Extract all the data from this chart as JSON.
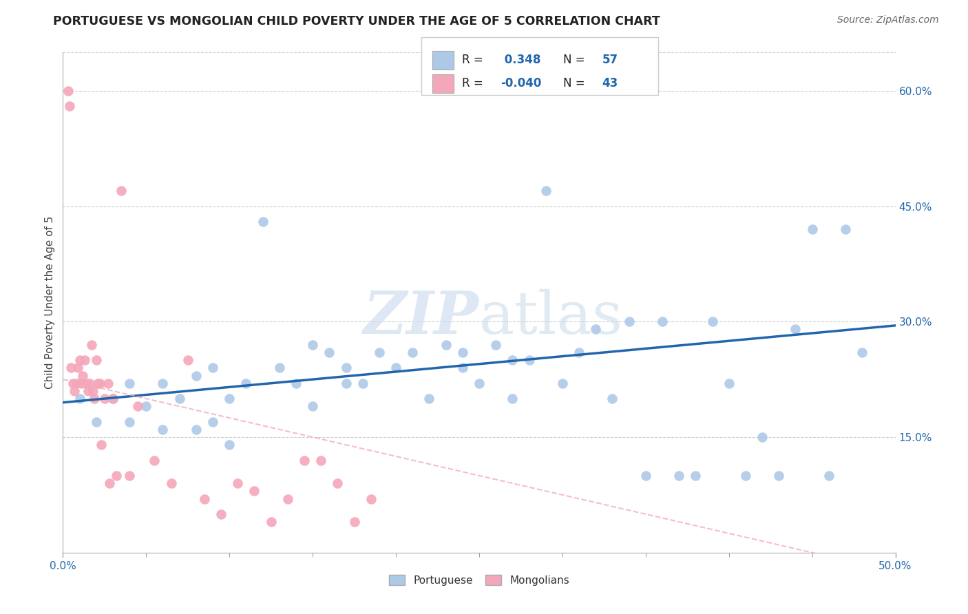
{
  "title": "PORTUGUESE VS MONGOLIAN CHILD POVERTY UNDER THE AGE OF 5 CORRELATION CHART",
  "source": "Source: ZipAtlas.com",
  "ylabel": "Child Poverty Under the Age of 5",
  "ytick_labels": [
    "15.0%",
    "30.0%",
    "45.0%",
    "60.0%"
  ],
  "ytick_values": [
    0.15,
    0.3,
    0.45,
    0.6
  ],
  "xmin": 0.0,
  "xmax": 0.5,
  "ymin": 0.0,
  "ymax": 0.65,
  "legend_label1": "Portuguese",
  "legend_label2": "Mongolians",
  "legend_R1": " 0.348",
  "legend_N1": "57",
  "legend_R2": "-0.040",
  "legend_N2": "43",
  "color_blue": "#aec9e8",
  "color_pink": "#f4a6bb",
  "color_blue_trend": "#2166ac",
  "color_pink_trend": "#f4a6bb",
  "watermark": "ZIPatlas",
  "portuguese_x": [
    0.01,
    0.02,
    0.03,
    0.04,
    0.04,
    0.05,
    0.06,
    0.06,
    0.07,
    0.08,
    0.08,
    0.09,
    0.09,
    0.1,
    0.1,
    0.11,
    0.12,
    0.13,
    0.14,
    0.15,
    0.15,
    0.16,
    0.17,
    0.17,
    0.18,
    0.19,
    0.2,
    0.21,
    0.22,
    0.23,
    0.24,
    0.24,
    0.25,
    0.26,
    0.27,
    0.27,
    0.28,
    0.29,
    0.3,
    0.31,
    0.32,
    0.33,
    0.34,
    0.35,
    0.36,
    0.37,
    0.38,
    0.39,
    0.4,
    0.41,
    0.42,
    0.43,
    0.44,
    0.45,
    0.46,
    0.47,
    0.48
  ],
  "portuguese_y": [
    0.2,
    0.17,
    0.2,
    0.17,
    0.22,
    0.19,
    0.22,
    0.16,
    0.2,
    0.23,
    0.16,
    0.17,
    0.24,
    0.2,
    0.14,
    0.22,
    0.43,
    0.24,
    0.22,
    0.27,
    0.19,
    0.26,
    0.22,
    0.24,
    0.22,
    0.26,
    0.24,
    0.26,
    0.2,
    0.27,
    0.24,
    0.26,
    0.22,
    0.27,
    0.25,
    0.2,
    0.25,
    0.47,
    0.22,
    0.26,
    0.29,
    0.2,
    0.3,
    0.1,
    0.3,
    0.1,
    0.1,
    0.3,
    0.22,
    0.1,
    0.15,
    0.1,
    0.29,
    0.42,
    0.1,
    0.42,
    0.26
  ],
  "mongolian_x": [
    0.003,
    0.004,
    0.005,
    0.006,
    0.007,
    0.008,
    0.009,
    0.01,
    0.011,
    0.012,
    0.013,
    0.014,
    0.015,
    0.016,
    0.017,
    0.018,
    0.019,
    0.02,
    0.021,
    0.022,
    0.023,
    0.025,
    0.027,
    0.028,
    0.03,
    0.032,
    0.035,
    0.04,
    0.045,
    0.055,
    0.065,
    0.075,
    0.085,
    0.095,
    0.105,
    0.115,
    0.125,
    0.135,
    0.145,
    0.155,
    0.165,
    0.175,
    0.185
  ],
  "mongolian_y": [
    0.6,
    0.58,
    0.24,
    0.22,
    0.21,
    0.22,
    0.24,
    0.25,
    0.22,
    0.23,
    0.25,
    0.22,
    0.21,
    0.22,
    0.27,
    0.21,
    0.2,
    0.25,
    0.22,
    0.22,
    0.14,
    0.2,
    0.22,
    0.09,
    0.2,
    0.1,
    0.47,
    0.1,
    0.19,
    0.12,
    0.09,
    0.25,
    0.07,
    0.05,
    0.09,
    0.08,
    0.04,
    0.07,
    0.12,
    0.12,
    0.09,
    0.04,
    0.07
  ]
}
